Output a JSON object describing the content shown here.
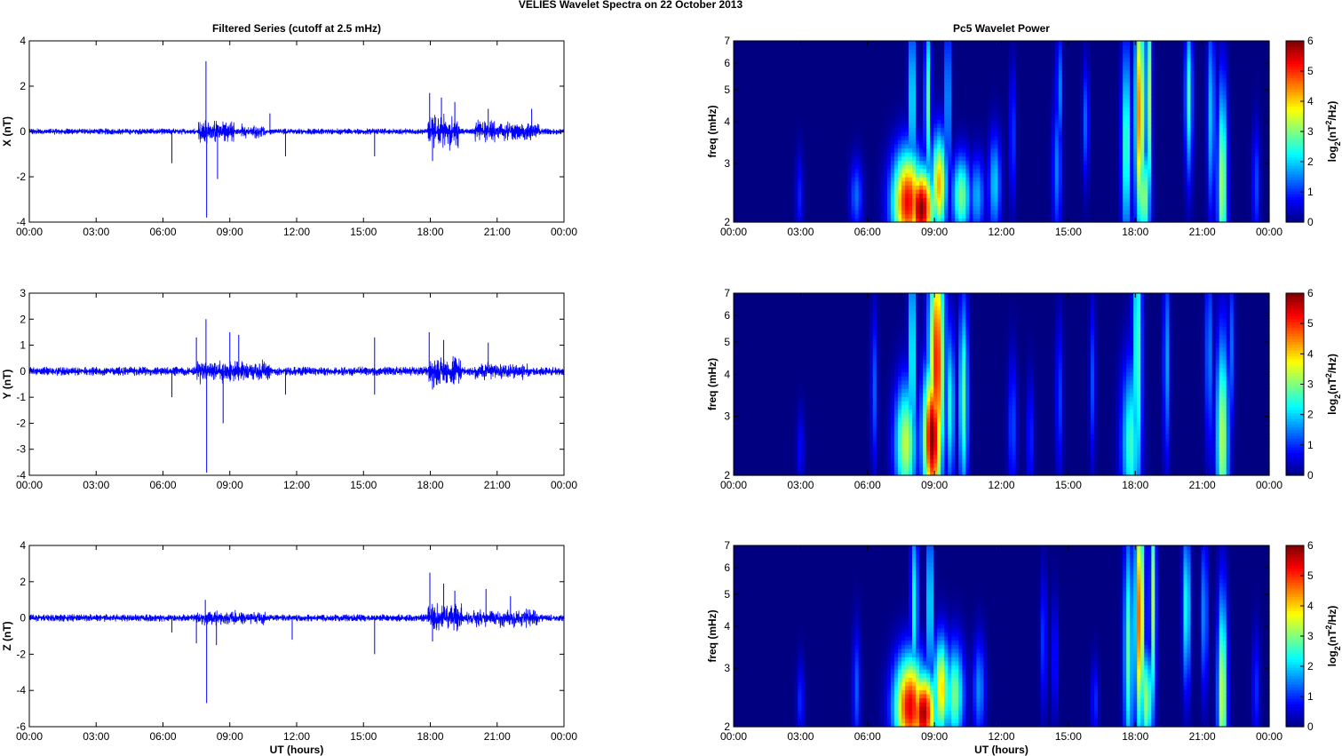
{
  "figure_title": "VELIES Wavelet Spectra on 22 October   2013",
  "chart_data": [
    {
      "type": "line",
      "title": "Filtered Series (cutoff at 2.5 mHz)",
      "ylabel": "X (nT)",
      "xlabel": "",
      "xlim": [
        0,
        24
      ],
      "ylim": [
        -4,
        4
      ],
      "yticks": [
        -4,
        -2,
        0,
        2,
        4
      ],
      "xtick_labels": [
        "00:00",
        "03:00",
        "06:00",
        "09:00",
        "12:00",
        "15:00",
        "18:00",
        "21:00",
        "00:00"
      ],
      "line_color": "#0000ff",
      "baseline_amplitude": 0.12,
      "bursts": [
        [
          7.6,
          9.2,
          0.6
        ],
        [
          9.5,
          10.6,
          0.35
        ],
        [
          17.9,
          19.3,
          0.8
        ],
        [
          20.0,
          22.9,
          0.5
        ]
      ],
      "spikes": [
        [
          6.4,
          -1.4
        ],
        [
          7.93,
          3.1
        ],
        [
          7.96,
          -3.8
        ],
        [
          8.45,
          -2.1
        ],
        [
          10.8,
          0.8
        ],
        [
          11.5,
          -1.1
        ],
        [
          15.5,
          -1.1
        ],
        [
          17.97,
          1.7
        ],
        [
          18.1,
          -1.3
        ],
        [
          18.5,
          1.5
        ],
        [
          19.1,
          1.3
        ],
        [
          20.6,
          1.0
        ],
        [
          22.55,
          1.0
        ]
      ]
    },
    {
      "type": "line",
      "title": "",
      "ylabel": "Y (nT)",
      "xlabel": "",
      "xlim": [
        0,
        24
      ],
      "ylim": [
        -4,
        3
      ],
      "yticks": [
        -4,
        -3,
        -2,
        -1,
        0,
        1,
        2,
        3
      ],
      "xtick_labels": [
        "00:00",
        "03:00",
        "06:00",
        "09:00",
        "12:00",
        "15:00",
        "18:00",
        "21:00",
        "00:00"
      ],
      "line_color": "#0000ff",
      "baseline_amplitude": 0.15,
      "bursts": [
        [
          7.5,
          10.8,
          0.45
        ],
        [
          17.9,
          19.4,
          0.6
        ],
        [
          20.0,
          22.5,
          0.35
        ]
      ],
      "spikes": [
        [
          6.4,
          -1.0
        ],
        [
          7.5,
          1.3
        ],
        [
          7.93,
          2.0
        ],
        [
          7.96,
          -3.9
        ],
        [
          8.7,
          -2.0
        ],
        [
          9.0,
          1.5
        ],
        [
          9.4,
          1.4
        ],
        [
          11.5,
          -0.9
        ],
        [
          15.5,
          1.3
        ],
        [
          15.5,
          -0.9
        ],
        [
          17.95,
          1.5
        ],
        [
          18.1,
          -0.7
        ],
        [
          18.6,
          1.2
        ],
        [
          20.6,
          1.1
        ]
      ]
    },
    {
      "type": "line",
      "title": "",
      "ylabel": "Z (nT)",
      "xlabel": "UT (hours)",
      "xlim": [
        0,
        24
      ],
      "ylim": [
        -6,
        4
      ],
      "yticks": [
        -6,
        -4,
        -2,
        0,
        2,
        4
      ],
      "xtick_labels": [
        "00:00",
        "03:00",
        "06:00",
        "09:00",
        "12:00",
        "15:00",
        "18:00",
        "21:00",
        "00:00"
      ],
      "line_color": "#0000ff",
      "baseline_amplitude": 0.18,
      "bursts": [
        [
          7.5,
          10.6,
          0.4
        ],
        [
          17.9,
          19.4,
          0.9
        ],
        [
          19.6,
          22.9,
          0.55
        ]
      ],
      "spikes": [
        [
          6.4,
          -0.8
        ],
        [
          7.5,
          -1.4
        ],
        [
          7.9,
          1.0
        ],
        [
          7.96,
          -4.7
        ],
        [
          8.4,
          -1.5
        ],
        [
          11.8,
          -1.2
        ],
        [
          15.5,
          -2.0
        ],
        [
          17.98,
          2.5
        ],
        [
          18.1,
          -1.3
        ],
        [
          18.6,
          1.9
        ],
        [
          19.1,
          1.5
        ],
        [
          20.5,
          1.6
        ],
        [
          21.6,
          1.2
        ]
      ]
    },
    {
      "type": "heatmap",
      "title": "Pc5 Wavelet Power",
      "ylabel": "freq (mHz)",
      "xlabel": "",
      "xlim": [
        0,
        24
      ],
      "ylim": [
        2,
        7
      ],
      "yscale": "log",
      "yticks": [
        2,
        3,
        4,
        5,
        6,
        7
      ],
      "xtick_labels": [
        "00:00",
        "03:00",
        "06:00",
        "09:00",
        "12:00",
        "15:00",
        "18:00",
        "21:00",
        "00:00"
      ],
      "colormap": "jet",
      "colorbar_label": "log2(nT²/Hz)",
      "colorbar_ticks": [
        0,
        1,
        2,
        3,
        4,
        5,
        6
      ],
      "clim": [
        0,
        6
      ],
      "blobs": [
        [
          2.95,
          2.4,
          0.12,
          0.22,
          0.9
        ],
        [
          5.5,
          2.4,
          0.2,
          0.18,
          1.4
        ],
        [
          7.8,
          2.3,
          0.5,
          0.25,
          5.3
        ],
        [
          8.4,
          2.2,
          0.4,
          0.2,
          6.0
        ],
        [
          8.0,
          4.6,
          0.12,
          0.45,
          2.4
        ],
        [
          8.7,
          4.6,
          0.1,
          0.45,
          2.8
        ],
        [
          9.2,
          2.6,
          0.25,
          0.25,
          4.2
        ],
        [
          9.6,
          4.6,
          0.1,
          0.45,
          2.0
        ],
        [
          10.2,
          2.4,
          0.3,
          0.2,
          3.0
        ],
        [
          10.9,
          2.4,
          0.25,
          0.2,
          1.8
        ],
        [
          11.7,
          2.6,
          0.2,
          0.25,
          2.0
        ],
        [
          12.5,
          3.6,
          0.1,
          0.35,
          1.2
        ],
        [
          14.5,
          2.9,
          0.15,
          0.35,
          1.5
        ],
        [
          14.6,
          5.0,
          0.1,
          0.3,
          1.6
        ],
        [
          15.8,
          4.0,
          0.1,
          0.3,
          1.4
        ],
        [
          17.6,
          3.4,
          0.15,
          0.5,
          2.8
        ],
        [
          18.2,
          4.3,
          0.15,
          0.6,
          4.6
        ],
        [
          18.4,
          2.4,
          0.2,
          0.25,
          3.2
        ],
        [
          18.6,
          4.8,
          0.1,
          0.6,
          3.4
        ],
        [
          20.4,
          4.8,
          0.12,
          0.4,
          2.6
        ],
        [
          21.4,
          4.2,
          0.12,
          0.5,
          2.0
        ],
        [
          21.9,
          2.6,
          0.15,
          0.5,
          3.4
        ],
        [
          23.4,
          2.6,
          0.12,
          0.3,
          1.2
        ]
      ]
    },
    {
      "type": "heatmap",
      "title": "",
      "ylabel": "freq (mHz)",
      "xlabel": "",
      "xlim": [
        0,
        24
      ],
      "ylim": [
        2,
        7
      ],
      "yscale": "log",
      "yticks": [
        2,
        3,
        4,
        5,
        6,
        7
      ],
      "xtick_labels": [
        "00:00",
        "03:00",
        "06:00",
        "09:00",
        "12:00",
        "15:00",
        "18:00",
        "21:00",
        "00:00"
      ],
      "colormap": "jet",
      "colorbar_label": "log2(nT²/Hz)",
      "colorbar_ticks": [
        0,
        1,
        2,
        3,
        4,
        5,
        6
      ],
      "clim": [
        0,
        6
      ],
      "blobs": [
        [
          3.0,
          2.4,
          0.12,
          0.2,
          0.8
        ],
        [
          6.3,
          3.6,
          0.1,
          0.4,
          1.3
        ],
        [
          7.7,
          2.5,
          0.35,
          0.3,
          3.4
        ],
        [
          8.0,
          4.4,
          0.12,
          0.6,
          2.6
        ],
        [
          8.9,
          2.6,
          0.3,
          0.35,
          6.0
        ],
        [
          9.1,
          4.3,
          0.25,
          0.6,
          5.2
        ],
        [
          9.7,
          3.2,
          0.15,
          0.4,
          2.4
        ],
        [
          10.3,
          3.4,
          0.15,
          0.5,
          2.8
        ],
        [
          12.5,
          2.8,
          0.15,
          0.35,
          1.2
        ],
        [
          13.3,
          2.6,
          0.12,
          0.3,
          1.0
        ],
        [
          14.6,
          3.4,
          0.12,
          0.4,
          1.1
        ],
        [
          16.1,
          3.8,
          0.1,
          0.4,
          1.2
        ],
        [
          17.8,
          2.5,
          0.3,
          0.4,
          2.6
        ],
        [
          18.1,
          4.6,
          0.15,
          0.8,
          2.8
        ],
        [
          19.4,
          4.4,
          0.1,
          0.5,
          1.8
        ],
        [
          21.3,
          4.6,
          0.12,
          0.5,
          1.6
        ],
        [
          21.9,
          2.6,
          0.2,
          0.5,
          3.4
        ],
        [
          22.3,
          4.8,
          0.1,
          0.4,
          1.4
        ]
      ]
    },
    {
      "type": "heatmap",
      "title": "",
      "ylabel": "freq (mHz)",
      "xlabel": "UT (hours)",
      "xlim": [
        0,
        24
      ],
      "ylim": [
        2,
        7
      ],
      "yscale": "log",
      "yticks": [
        2,
        3,
        4,
        5,
        6,
        7
      ],
      "xtick_labels": [
        "00:00",
        "03:00",
        "06:00",
        "09:00",
        "12:00",
        "15:00",
        "18:00",
        "21:00",
        "00:00"
      ],
      "colormap": "jet",
      "colorbar_label": "log2(nT²/Hz)",
      "colorbar_ticks": [
        0,
        1,
        2,
        3,
        4,
        5,
        6
      ],
      "clim": [
        0,
        6
      ],
      "blobs": [
        [
          3.0,
          2.4,
          0.12,
          0.2,
          1.0
        ],
        [
          5.5,
          2.6,
          0.12,
          0.3,
          1.3
        ],
        [
          7.9,
          2.3,
          0.5,
          0.25,
          5.4
        ],
        [
          8.5,
          2.2,
          0.4,
          0.2,
          5.8
        ],
        [
          8.1,
          4.6,
          0.12,
          0.45,
          2.4
        ],
        [
          8.8,
          4.6,
          0.1,
          0.45,
          2.6
        ],
        [
          9.3,
          2.6,
          0.25,
          0.25,
          4.0
        ],
        [
          9.9,
          2.5,
          0.3,
          0.25,
          3.0
        ],
        [
          11.0,
          2.6,
          0.2,
          0.25,
          1.6
        ],
        [
          13.9,
          3.6,
          0.1,
          0.35,
          1.2
        ],
        [
          14.4,
          3.2,
          0.1,
          0.3,
          1.0
        ],
        [
          16.2,
          2.4,
          0.12,
          0.2,
          1.0
        ],
        [
          17.7,
          3.4,
          0.15,
          0.6,
          2.8
        ],
        [
          18.2,
          4.3,
          0.15,
          0.6,
          4.8
        ],
        [
          18.5,
          2.4,
          0.2,
          0.25,
          3.2
        ],
        [
          18.8,
          4.8,
          0.1,
          0.6,
          3.2
        ],
        [
          20.3,
          4.6,
          0.12,
          0.4,
          2.6
        ],
        [
          21.1,
          4.4,
          0.1,
          0.4,
          1.8
        ],
        [
          21.9,
          2.5,
          0.15,
          0.5,
          3.6
        ],
        [
          23.4,
          2.6,
          0.12,
          0.3,
          1.0
        ]
      ]
    }
  ]
}
